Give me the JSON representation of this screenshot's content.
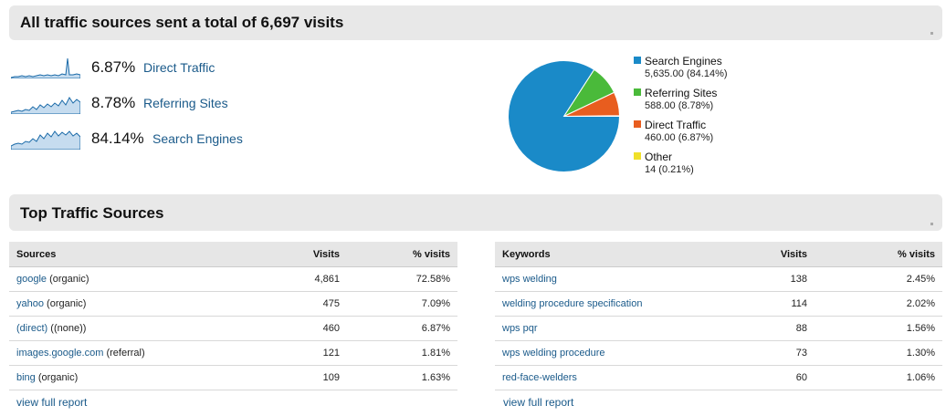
{
  "header": {
    "title": "All traffic sources sent a total of 6,697 visits"
  },
  "summary": [
    {
      "pct": "6.87%",
      "label": "Direct Traffic"
    },
    {
      "pct": "8.78%",
      "label": "Referring Sites"
    },
    {
      "pct": "84.14%",
      "label": "Search Engines"
    }
  ],
  "colors": {
    "search": "#1a8ac8",
    "referring": "#4aba3a",
    "direct": "#e85d1f",
    "other": "#f0e02a",
    "link": "#1a5a8a"
  },
  "chart_data": {
    "type": "pie",
    "series": [
      {
        "name": "Search Engines",
        "value": 5635.0,
        "percent": 84.14,
        "value_label": "5,635.00 (84.14%)"
      },
      {
        "name": "Referring Sites",
        "value": 588.0,
        "percent": 8.78,
        "value_label": "588.00 (8.78%)"
      },
      {
        "name": "Direct Traffic",
        "value": 460.0,
        "percent": 6.87,
        "value_label": "460.00 (6.87%)"
      },
      {
        "name": "Other",
        "value": 14,
        "percent": 0.21,
        "value_label": "14 (0.21%)"
      }
    ],
    "legend_position": "right"
  },
  "top_sources": {
    "title": "Top Traffic Sources"
  },
  "sources_table": {
    "headers": {
      "col1": "Sources",
      "col2": "Visits",
      "col3": "% visits"
    },
    "rows": [
      {
        "link": "google",
        "suffix": " (organic)",
        "visits": "4,861",
        "pct": "72.58%"
      },
      {
        "link": "yahoo",
        "suffix": " (organic)",
        "visits": "475",
        "pct": "7.09%"
      },
      {
        "link": "(direct)",
        "suffix": " ((none))",
        "visits": "460",
        "pct": "6.87%"
      },
      {
        "link": "images.google.com",
        "suffix": " (referral)",
        "visits": "121",
        "pct": "1.81%"
      },
      {
        "link": "bing",
        "suffix": " (organic)",
        "visits": "109",
        "pct": "1.63%"
      }
    ],
    "full_report": "view full report"
  },
  "keywords_table": {
    "headers": {
      "col1": "Keywords",
      "col2": "Visits",
      "col3": "% visits"
    },
    "rows": [
      {
        "link": "wps welding",
        "visits": "138",
        "pct": "2.45%"
      },
      {
        "link": "welding procedure specification",
        "visits": "114",
        "pct": "2.02%"
      },
      {
        "link": "wps pqr",
        "visits": "88",
        "pct": "1.56%"
      },
      {
        "link": "wps welding procedure",
        "visits": "73",
        "pct": "1.30%"
      },
      {
        "link": "red-face-welders",
        "visits": "60",
        "pct": "1.06%"
      }
    ],
    "full_report": "view full report"
  }
}
